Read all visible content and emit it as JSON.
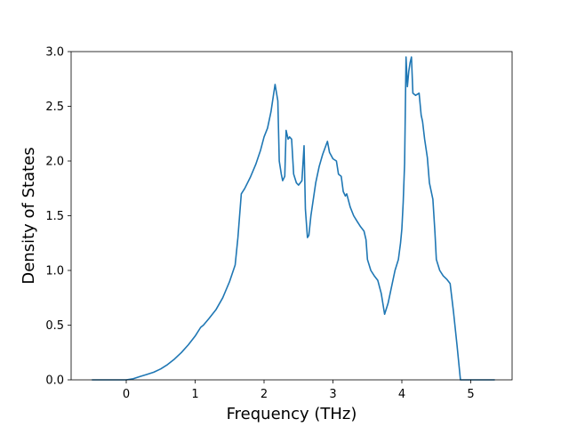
{
  "chart_data": {
    "type": "line",
    "title": "",
    "xlabel": "Frequency (THz)",
    "ylabel": "Density of States",
    "xlim": [
      -0.8,
      5.6
    ],
    "ylim": [
      0.0,
      3.0
    ],
    "xticks": [
      0,
      1,
      2,
      3,
      4,
      5
    ],
    "yticks": [
      0.0,
      0.5,
      1.0,
      1.5,
      2.0,
      2.5,
      3.0
    ],
    "grid": false,
    "legend": "none",
    "colors": {
      "line": "#1f77b4"
    },
    "series": [
      {
        "x": [
          -0.5,
          -0.1,
          0.0,
          0.1,
          0.2,
          0.3,
          0.4,
          0.5,
          0.6,
          0.7,
          0.8,
          0.9,
          1.0,
          1.08,
          1.12,
          1.2,
          1.3,
          1.4,
          1.5,
          1.58,
          1.62,
          1.67,
          1.72,
          1.8,
          1.88,
          1.95,
          2.0,
          2.05,
          2.1,
          2.14,
          2.16,
          2.2,
          2.22,
          2.25,
          2.27,
          2.3,
          2.32,
          2.35,
          2.37,
          2.4,
          2.43,
          2.47,
          2.5,
          2.55,
          2.58,
          2.6,
          2.63,
          2.65,
          2.68,
          2.75,
          2.8,
          2.85,
          2.92,
          2.95,
          3.0,
          3.05,
          3.08,
          3.12,
          3.15,
          3.18,
          3.2,
          3.25,
          3.3,
          3.35,
          3.4,
          3.45,
          3.48,
          3.5,
          3.55,
          3.6,
          3.65,
          3.7,
          3.75,
          3.8,
          3.85,
          3.9,
          3.95,
          3.98,
          4.0,
          4.02,
          4.04,
          4.06,
          4.08,
          4.1,
          4.12,
          4.14,
          4.16,
          4.2,
          4.25,
          4.28,
          4.3,
          4.33,
          4.37,
          4.4,
          4.45,
          4.48,
          4.5,
          4.55,
          4.6,
          4.65,
          4.7,
          4.75,
          4.8,
          4.85,
          4.9,
          5.35
        ],
        "y": [
          0.0,
          0.0,
          0.0,
          0.01,
          0.03,
          0.05,
          0.07,
          0.1,
          0.14,
          0.19,
          0.25,
          0.32,
          0.4,
          0.48,
          0.5,
          0.56,
          0.64,
          0.75,
          0.9,
          1.05,
          1.3,
          1.7,
          1.75,
          1.85,
          1.97,
          2.1,
          2.22,
          2.3,
          2.45,
          2.62,
          2.7,
          2.55,
          2.0,
          1.88,
          1.82,
          1.86,
          2.28,
          2.2,
          2.22,
          2.2,
          1.88,
          1.8,
          1.78,
          1.82,
          2.14,
          1.56,
          1.3,
          1.32,
          1.5,
          1.8,
          1.95,
          2.06,
          2.18,
          2.08,
          2.02,
          2.0,
          1.88,
          1.86,
          1.72,
          1.68,
          1.7,
          1.58,
          1.5,
          1.45,
          1.4,
          1.36,
          1.28,
          1.1,
          1.0,
          0.95,
          0.91,
          0.79,
          0.6,
          0.7,
          0.85,
          1.0,
          1.1,
          1.25,
          1.38,
          1.62,
          1.98,
          2.95,
          2.68,
          2.82,
          2.9,
          2.95,
          2.62,
          2.6,
          2.62,
          2.42,
          2.36,
          2.2,
          2.03,
          1.8,
          1.65,
          1.35,
          1.1,
          1.0,
          0.95,
          0.92,
          0.88,
          0.62,
          0.32,
          0.0,
          0.0,
          0.0
        ]
      }
    ]
  }
}
